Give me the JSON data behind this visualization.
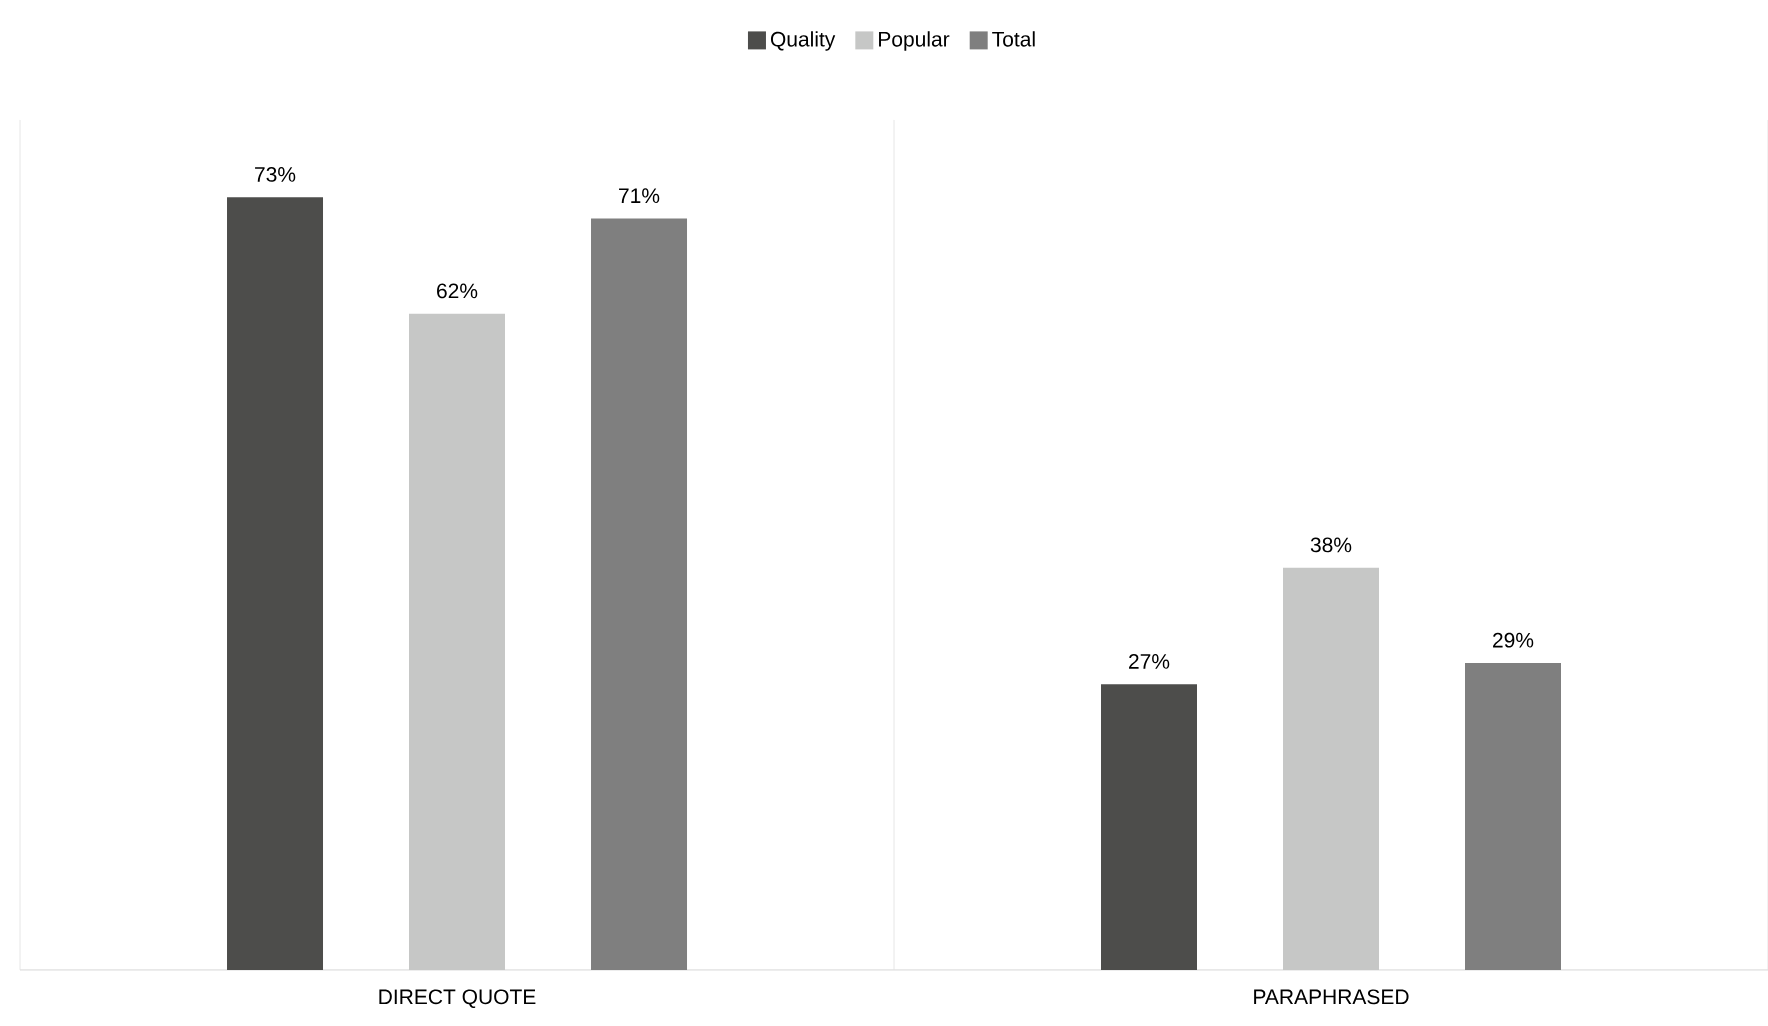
{
  "chart_data": {
    "type": "bar",
    "categories": [
      "DIRECT QUOTE",
      "PARAPHRASED"
    ],
    "series": [
      {
        "name": "Quality",
        "color": "#4d4d4b",
        "values": [
          73,
          27
        ],
        "value_labels": [
          "73%",
          "27%"
        ]
      },
      {
        "name": "Popular",
        "color": "#c6c7c6",
        "values": [
          62,
          38
        ],
        "value_labels": [
          "62%",
          "38%"
        ]
      },
      {
        "name": "Total",
        "color": "#7f7f7f",
        "values": [
          71,
          29
        ],
        "value_labels": [
          "71%",
          "29%"
        ]
      }
    ],
    "legend": "top",
    "grid": "x"
  }
}
